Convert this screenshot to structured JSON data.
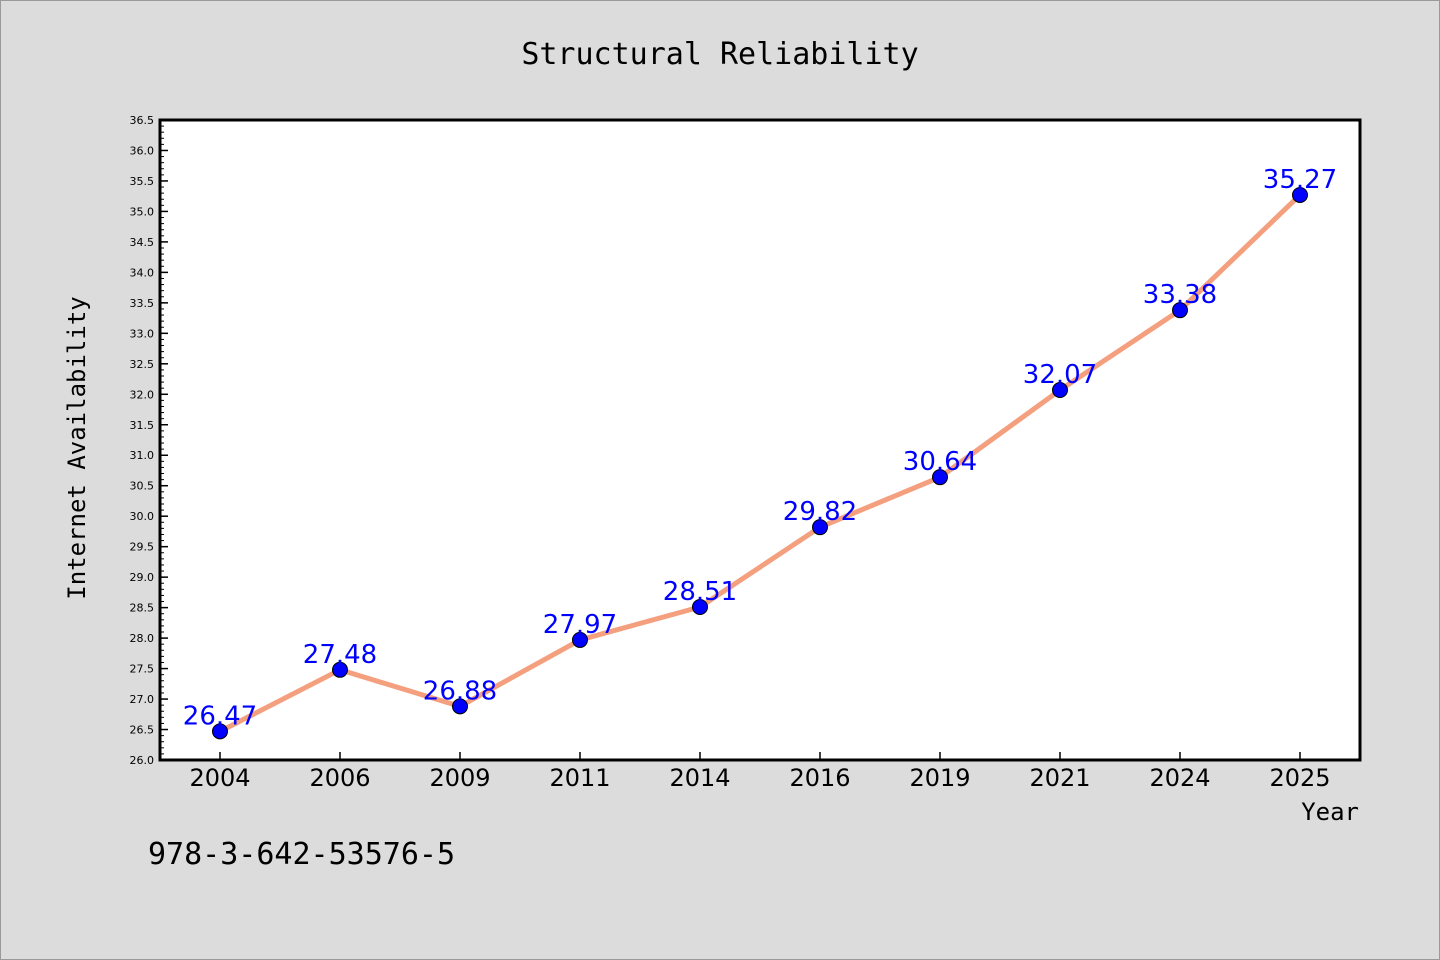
{
  "chart_data": {
    "type": "line",
    "title": "Structural Reliability",
    "xlabel": "Year",
    "ylabel": "Internet Availability",
    "categories": [
      "2004",
      "2006",
      "2009",
      "2011",
      "2014",
      "2016",
      "2019",
      "2021",
      "2024",
      "2025"
    ],
    "series": [
      {
        "values": [
          26.47,
          27.48,
          26.88,
          27.97,
          28.51,
          29.82,
          30.64,
          32.07,
          33.38,
          35.27
        ],
        "line_color": "#f4a07e",
        "marker_color": "#0000ff"
      }
    ],
    "data_labels": [
      "26.47",
      "27.48",
      "26.88",
      "27.97",
      "28.51",
      "29.82",
      "30.64",
      "32.07",
      "33.38",
      "35.27"
    ],
    "ylim": [
      26.0,
      36.5
    ],
    "yticks": [
      "26.0",
      "26.5",
      "27.0",
      "27.5",
      "28.0",
      "28.5",
      "29.0",
      "29.5",
      "30.0",
      "30.5",
      "31.0",
      "31.5",
      "32.0",
      "32.5",
      "33.0",
      "33.5",
      "34.0",
      "34.5",
      "35.0",
      "35.5",
      "36.0",
      "36.5"
    ],
    "grid": false,
    "legend": "none"
  },
  "footer": {
    "isbn": "978-3-642-53576-5"
  },
  "colors": {
    "background": "#dcdcdc",
    "plot_background": "#ffffff",
    "line": "#f4a07e",
    "marker": "#0000ff",
    "data_label": "#0000ff"
  }
}
